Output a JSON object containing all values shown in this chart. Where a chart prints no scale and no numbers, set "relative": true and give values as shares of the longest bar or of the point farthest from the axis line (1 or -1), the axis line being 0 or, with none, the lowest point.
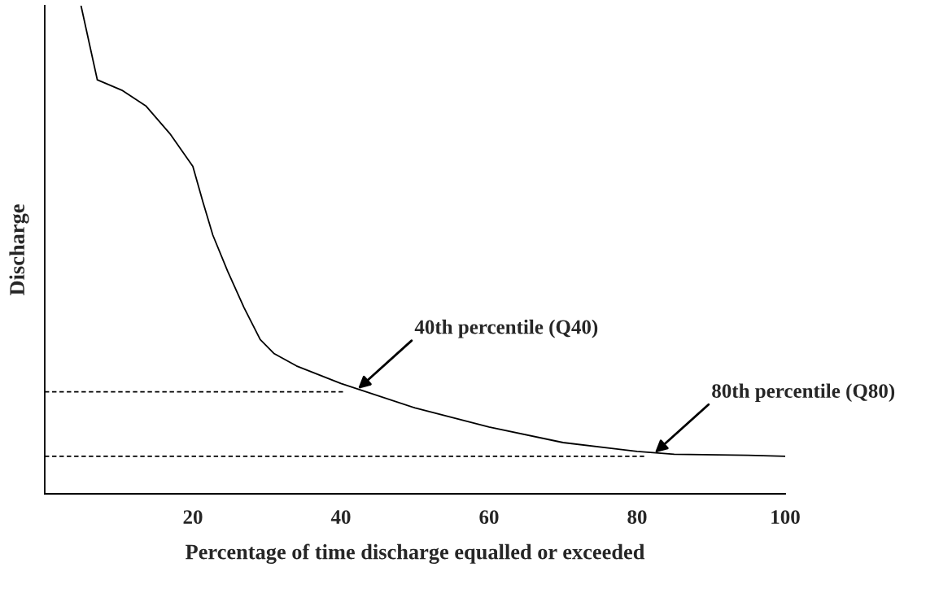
{
  "chart_data": {
    "type": "line",
    "relative": true,
    "xlabel": "Percentage of time discharge equalled or exceeded",
    "ylabel": "Discharge",
    "xlim": [
      0,
      100
    ],
    "xticks": [
      20,
      40,
      60,
      80,
      100
    ],
    "tick_labels": "x",
    "grid": false,
    "legend": false,
    "marker": "none",
    "series": [
      {
        "color": "#000000",
        "line_style": "solid",
        "x": [
          4.9,
          7.1,
          10.4,
          13.7,
          17.0,
          20,
          21.4,
          22.7,
          24.7,
          26.9,
          29.1,
          31,
          34,
          40,
          50,
          60,
          70,
          80,
          85,
          95,
          100
        ],
        "values": [
          1.0,
          0.848,
          0.827,
          0.794,
          0.736,
          0.671,
          0.596,
          0.53,
          0.456,
          0.382,
          0.316,
          0.287,
          0.262,
          0.226,
          0.176,
          0.137,
          0.105,
          0.087,
          0.081,
          0.079,
          0.077
        ]
      },
      {
        "color": "#000000",
        "line_style": "dashed",
        "x": [
          0,
          40.5
        ],
        "values": [
          0.209,
          0.209
        ]
      },
      {
        "color": "#000000",
        "line_style": "dashed",
        "x": [
          0,
          81
        ],
        "values": [
          0.077,
          0.077
        ]
      }
    ],
    "annotations": [
      {
        "text": "40th percentile (Q40)",
        "x": 42.3,
        "y": 0.215
      },
      {
        "text": "80th percentile (Q80)",
        "x": 82.4,
        "y": 0.084
      }
    ]
  }
}
